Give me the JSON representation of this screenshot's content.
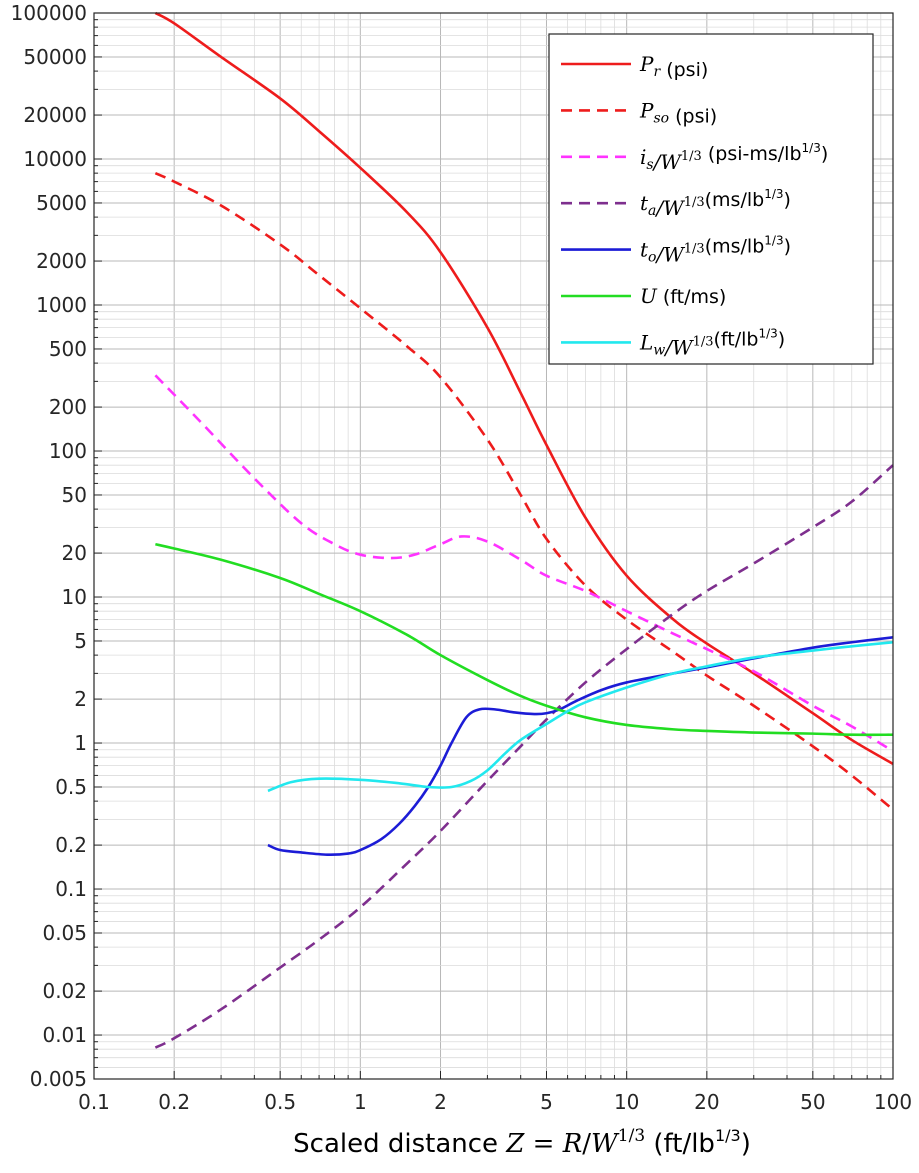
{
  "chart_data": {
    "type": "line",
    "title": "",
    "xlabel": "Scaled distance Z = R/W^(1/3) (ft/lb^(1/3))",
    "ylabel": "",
    "xscale": "log",
    "yscale": "log",
    "xlim": [
      0.1,
      100
    ],
    "ylim": [
      0.005,
      100000
    ],
    "grid": true,
    "legend_position": "top-right",
    "x_tick_labels": [
      "0.1",
      "0.2",
      "0.5",
      "1",
      "2",
      "5",
      "10",
      "20",
      "50",
      "100"
    ],
    "y_tick_labels": [
      "0.005",
      "0.01",
      "0.02",
      "0.05",
      "0.1",
      "0.2",
      "0.5",
      "1",
      "2",
      "5",
      "10",
      "20",
      "50",
      "100",
      "200",
      "500",
      "1000",
      "2000",
      "5000",
      "10000",
      "20000",
      "50000",
      "100000"
    ],
    "xlabel_parts": {
      "prefix": "Scaled distance ",
      "Z": "Z",
      "eq": " = ",
      "R": "R",
      "slash": "/",
      "W": "W",
      "exp": "1/3",
      "unit_open": "  (ft/lb",
      "unit_exp": "1/3",
      "unit_close": ")"
    },
    "series": [
      {
        "key": "Pr",
        "color": "#ee1c1c",
        "dash": "solid",
        "label": {
          "sym": "P",
          "sub": "r",
          "div": "",
          "unit": "  (psi)",
          "unit_exp": "",
          "unit_close": ""
        },
        "x": [
          0.17,
          0.2,
          0.3,
          0.5,
          0.7,
          1,
          1.5,
          2,
          3,
          4,
          5,
          7,
          10,
          15,
          20,
          30,
          50,
          70,
          100
        ],
        "y": [
          100000,
          85000,
          50000,
          26000,
          15500,
          8700,
          4300,
          2300,
          700,
          250,
          110,
          35,
          14,
          7,
          4.8,
          3,
          1.6,
          1.05,
          0.72
        ]
      },
      {
        "key": "Pso",
        "color": "#ee1c1c",
        "dash": "dashed",
        "label": {
          "sym": "P",
          "sub": "so",
          "div": "",
          "unit": "  (psi)",
          "unit_exp": "",
          "unit_close": ""
        },
        "x": [
          0.17,
          0.2,
          0.3,
          0.5,
          0.7,
          1,
          1.5,
          2,
          3,
          4,
          5,
          7,
          10,
          15,
          20,
          30,
          50,
          70,
          100
        ],
        "y": [
          8000,
          7000,
          4800,
          2600,
          1600,
          950,
          520,
          320,
          120,
          50,
          25,
          12,
          7,
          4.2,
          2.9,
          1.8,
          0.95,
          0.6,
          0.35
        ]
      },
      {
        "key": "is",
        "color": "#ff33ff",
        "dash": "dashed",
        "label": {
          "sym": "i",
          "sub": "s",
          "div": "/W",
          "unit": "  (psi-ms/lb",
          "unit_exp": "1/3",
          "unit_close": ")"
        },
        "x": [
          0.17,
          0.25,
          0.4,
          0.6,
          0.8,
          1,
          1.3,
          1.6,
          2,
          2.4,
          3,
          4,
          5,
          7,
          10,
          15,
          20,
          30,
          50,
          70,
          100
        ],
        "y": [
          330,
          160,
          65,
          32,
          23,
          19.5,
          18.5,
          19.5,
          23,
          26,
          24,
          18,
          14,
          11,
          8,
          5.6,
          4.4,
          3.1,
          1.8,
          1.3,
          0.88
        ]
      },
      {
        "key": "ta",
        "color": "#7e2f8e",
        "dash": "dashed",
        "label": {
          "sym": "t",
          "sub": "a",
          "div": "/W",
          "unit": "(ms/lb",
          "unit_exp": "1/3",
          "unit_close": ")"
        },
        "x": [
          0.17,
          0.2,
          0.3,
          0.5,
          0.7,
          1,
          1.5,
          2,
          3,
          4,
          5,
          7,
          10,
          15,
          20,
          30,
          50,
          70,
          100
        ],
        "y": [
          0.0082,
          0.0095,
          0.015,
          0.029,
          0.045,
          0.075,
          0.15,
          0.25,
          0.55,
          0.95,
          1.45,
          2.6,
          4.4,
          7.7,
          11,
          17,
          30,
          45,
          80
        ]
      },
      {
        "key": "to",
        "color": "#1c1cd6",
        "dash": "solid",
        "label": {
          "sym": "t",
          "sub": "o",
          "div": "/W",
          "unit": "(ms/lb",
          "unit_exp": "1/3",
          "unit_close": ")"
        },
        "x": [
          0.45,
          0.5,
          0.6,
          0.75,
          0.9,
          1,
          1.2,
          1.4,
          1.6,
          1.8,
          2,
          2.2,
          2.5,
          2.8,
          3.2,
          3.8,
          4.5,
          5,
          5.6,
          6.5,
          8,
          10,
          15,
          20,
          30,
          50,
          70,
          100
        ],
        "y": [
          0.2,
          0.185,
          0.178,
          0.172,
          0.175,
          0.185,
          0.22,
          0.28,
          0.37,
          0.5,
          0.7,
          1,
          1.5,
          1.7,
          1.7,
          1.62,
          1.58,
          1.6,
          1.7,
          1.95,
          2.3,
          2.6,
          3,
          3.3,
          3.8,
          4.5,
          4.9,
          5.3
        ]
      },
      {
        "key": "U",
        "color": "#22dd22",
        "dash": "solid",
        "label": {
          "sym": "U",
          "sub": "",
          "div": "",
          "unit": "  (ft/ms)",
          "unit_exp": "",
          "unit_close": ""
        },
        "x": [
          0.17,
          0.2,
          0.3,
          0.5,
          0.7,
          1,
          1.5,
          2,
          3,
          4,
          5,
          7,
          10,
          15,
          20,
          30,
          50,
          70,
          100
        ],
        "y": [
          23,
          21.5,
          18,
          13.5,
          10.5,
          8,
          5.5,
          4,
          2.7,
          2.1,
          1.8,
          1.5,
          1.33,
          1.24,
          1.21,
          1.18,
          1.16,
          1.14,
          1.14
        ]
      },
      {
        "key": "Lw",
        "color": "#22e8ee",
        "dash": "solid",
        "label": {
          "sym": "L",
          "sub": "w",
          "div": "/W",
          "unit": "(ft/lb",
          "unit_exp": "1/3",
          "unit_close": ")"
        },
        "x": [
          0.45,
          0.55,
          0.7,
          1,
          1.4,
          1.8,
          2.2,
          2.6,
          3,
          3.5,
          4,
          5,
          6,
          7,
          10,
          15,
          20,
          30,
          50,
          70,
          100
        ],
        "y": [
          0.47,
          0.54,
          0.57,
          0.56,
          0.53,
          0.5,
          0.5,
          0.55,
          0.65,
          0.85,
          1.05,
          1.35,
          1.65,
          1.9,
          2.4,
          3,
          3.35,
          3.85,
          4.3,
          4.6,
          4.9
        ]
      }
    ]
  }
}
